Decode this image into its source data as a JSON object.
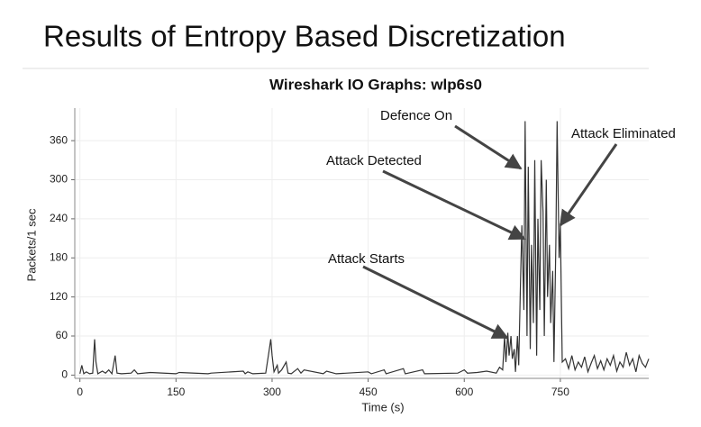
{
  "title": "Results of Entropy Based Discretization",
  "chart_data": {
    "type": "line",
    "title": "Wireshark IO Graphs: wlp6s0",
    "x_label": "Time (s)",
    "y_label": "Packets/1 sec",
    "annotations": [
      "Defence On",
      "Attack Detected",
      "Attack Eliminated",
      "Attack Starts"
    ],
    "color": "#333333",
    "grid": true,
    "xlim": [
      -8,
      888
    ],
    "ylim": [
      -5,
      410
    ],
    "xticks": [
      0,
      150,
      300,
      450,
      600,
      750
    ],
    "yticks": [
      0,
      60,
      120,
      180,
      240,
      300,
      360
    ],
    "x": [
      0,
      3,
      6,
      10,
      15,
      20,
      23,
      25,
      28,
      35,
      40,
      45,
      50,
      55,
      58,
      65,
      80,
      85,
      90,
      110,
      150,
      155,
      200,
      205,
      255,
      258,
      262,
      270,
      290,
      295,
      298,
      300,
      303,
      308,
      310,
      315,
      322,
      325,
      330,
      340,
      345,
      350,
      380,
      385,
      400,
      450,
      455,
      475,
      478,
      505,
      508,
      535,
      538,
      590,
      600,
      605,
      620,
      635,
      650,
      655,
      660,
      663,
      665,
      668,
      670,
      673,
      675,
      678,
      680,
      683,
      685,
      688,
      690,
      693,
      695,
      698,
      700,
      703,
      705,
      708,
      710,
      713,
      715,
      718,
      720,
      723,
      725,
      728,
      730,
      733,
      735,
      738,
      740,
      743,
      745,
      748,
      750,
      753,
      758,
      763,
      768,
      773,
      778,
      783,
      788,
      793,
      798,
      803,
      808,
      813,
      818,
      823,
      828,
      833,
      838,
      843,
      848,
      853,
      858,
      863,
      868,
      873,
      878,
      883,
      888
    ],
    "values": [
      2,
      15,
      2,
      5,
      2,
      3,
      55,
      20,
      2,
      6,
      3,
      8,
      2,
      30,
      3,
      2,
      3,
      8,
      2,
      4,
      2,
      4,
      2,
      3,
      6,
      2,
      5,
      2,
      3,
      35,
      55,
      30,
      5,
      15,
      3,
      8,
      20,
      3,
      2,
      10,
      3,
      8,
      2,
      6,
      2,
      5,
      2,
      8,
      2,
      10,
      2,
      8,
      2,
      3,
      8,
      3,
      4,
      6,
      3,
      12,
      8,
      60,
      20,
      65,
      30,
      60,
      25,
      40,
      5,
      60,
      15,
      150,
      230,
      100,
      390,
      60,
      320,
      40,
      200,
      80,
      330,
      30,
      240,
      100,
      330,
      250,
      60,
      300,
      120,
      200,
      80,
      160,
      20,
      200,
      390,
      180,
      230,
      20,
      25,
      10,
      30,
      8,
      20,
      12,
      28,
      5,
      18,
      30,
      10,
      22,
      8,
      25,
      15,
      30,
      6,
      20,
      12,
      35,
      15,
      25,
      5,
      30,
      18,
      12,
      25
    ]
  }
}
